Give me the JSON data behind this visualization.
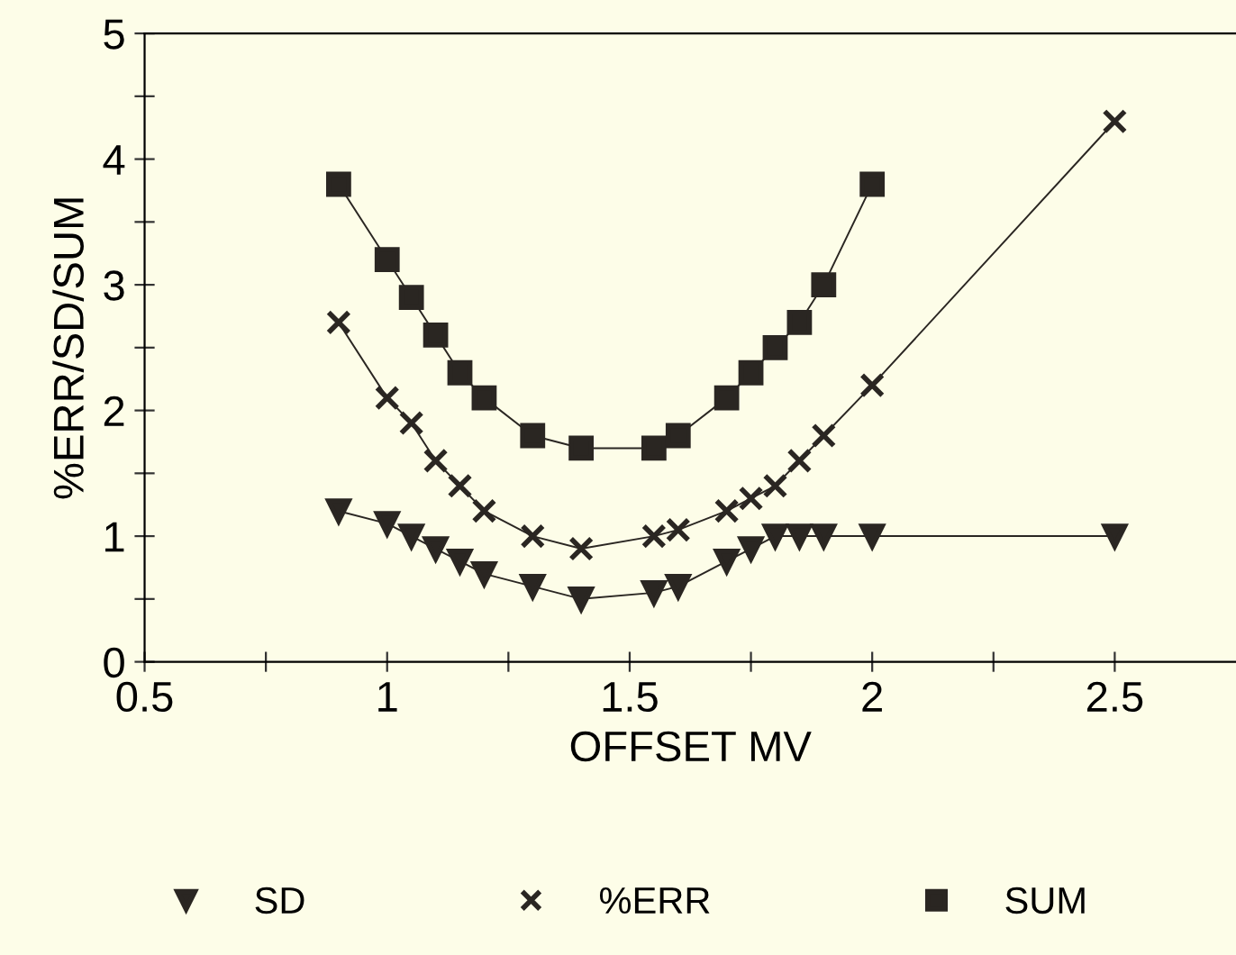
{
  "chart_data": {
    "type": "line",
    "xlabel": "OFFSET MV",
    "ylabel": "%ERR/SD/SUM",
    "xlim": [
      0.5,
      2.75
    ],
    "xticks": [
      0.5,
      {
        "value": 0.75,
        "label": null
      },
      1,
      {
        "value": 1.25,
        "label": null
      },
      1.5,
      {
        "value": 1.75,
        "label": null
      },
      2,
      {
        "value": 2.25,
        "label": null
      },
      2.5
    ],
    "ylim": [
      0,
      5
    ],
    "yticks": [
      0,
      {
        "value": 0.5,
        "label": null
      },
      1,
      {
        "value": 1.5,
        "label": null
      },
      2,
      {
        "value": 2.5,
        "label": null
      },
      3,
      {
        "value": 3.5,
        "label": null
      },
      4,
      {
        "value": 4.5,
        "label": null
      },
      5
    ],
    "grid": false,
    "legend": "bottom",
    "line_style": "solid",
    "series": [
      {
        "name": "SD",
        "color": "#2a2622",
        "marker": "triangle",
        "x": [
          0.9,
          1,
          1.05,
          1.1,
          1.15,
          1.2,
          1.3,
          1.4,
          1.55,
          1.6,
          1.7,
          1.75,
          1.8,
          1.85,
          1.9,
          2,
          2.5
        ],
        "values": [
          1.2,
          1.1,
          1.0,
          0.9,
          0.8,
          0.7,
          0.6,
          0.5,
          0.55,
          0.6,
          0.8,
          0.9,
          1.0,
          1.0,
          1.0,
          1.0,
          1.0
        ]
      },
      {
        "name": "%ERR",
        "color": "#2a2622",
        "marker": "cross",
        "x": [
          0.9,
          1,
          1.05,
          1.1,
          1.15,
          1.2,
          1.3,
          1.4,
          1.55,
          1.6,
          1.7,
          1.75,
          1.8,
          1.85,
          1.9,
          2,
          2.5
        ],
        "values": [
          2.7,
          2.1,
          1.9,
          1.6,
          1.4,
          1.2,
          1.0,
          0.9,
          1.0,
          1.05,
          1.2,
          1.3,
          1.4,
          1.6,
          1.8,
          2.2,
          4.3
        ]
      },
      {
        "name": "SUM",
        "color": "#2a2622",
        "marker": "square",
        "x": [
          0.9,
          1,
          1.05,
          1.1,
          1.15,
          1.2,
          1.3,
          1.4,
          1.55,
          1.6,
          1.7,
          1.75,
          1.8,
          1.85,
          1.9,
          2
        ],
        "values": [
          3.8,
          3.2,
          2.9,
          2.6,
          2.3,
          2.1,
          1.8,
          1.7,
          1.7,
          1.8,
          2.1,
          2.3,
          2.5,
          2.7,
          3.0,
          3.8
        ]
      }
    ]
  }
}
